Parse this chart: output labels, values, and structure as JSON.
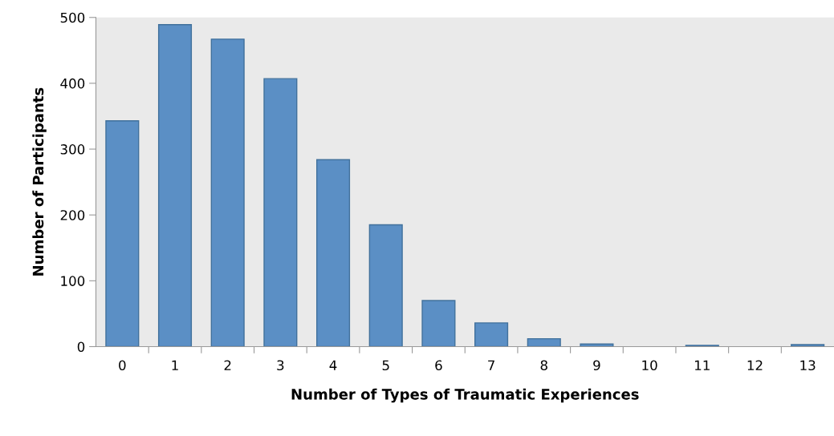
{
  "chart_data": {
    "type": "bar",
    "xlabel": "Number of Types of Traumatic Experiences",
    "ylabel": "Number of Participants",
    "categories": [
      "0",
      "1",
      "2",
      "3",
      "4",
      "5",
      "6",
      "7",
      "8",
      "9",
      "10",
      "11",
      "12",
      "13"
    ],
    "values": [
      343,
      489,
      467,
      407,
      284,
      185,
      70,
      36,
      12,
      4,
      0,
      2,
      0,
      3
    ],
    "color": "#5b8fc5",
    "ylim": [
      0,
      500
    ],
    "yticks": [
      0,
      100,
      200,
      300,
      400,
      500
    ],
    "grid": false
  }
}
